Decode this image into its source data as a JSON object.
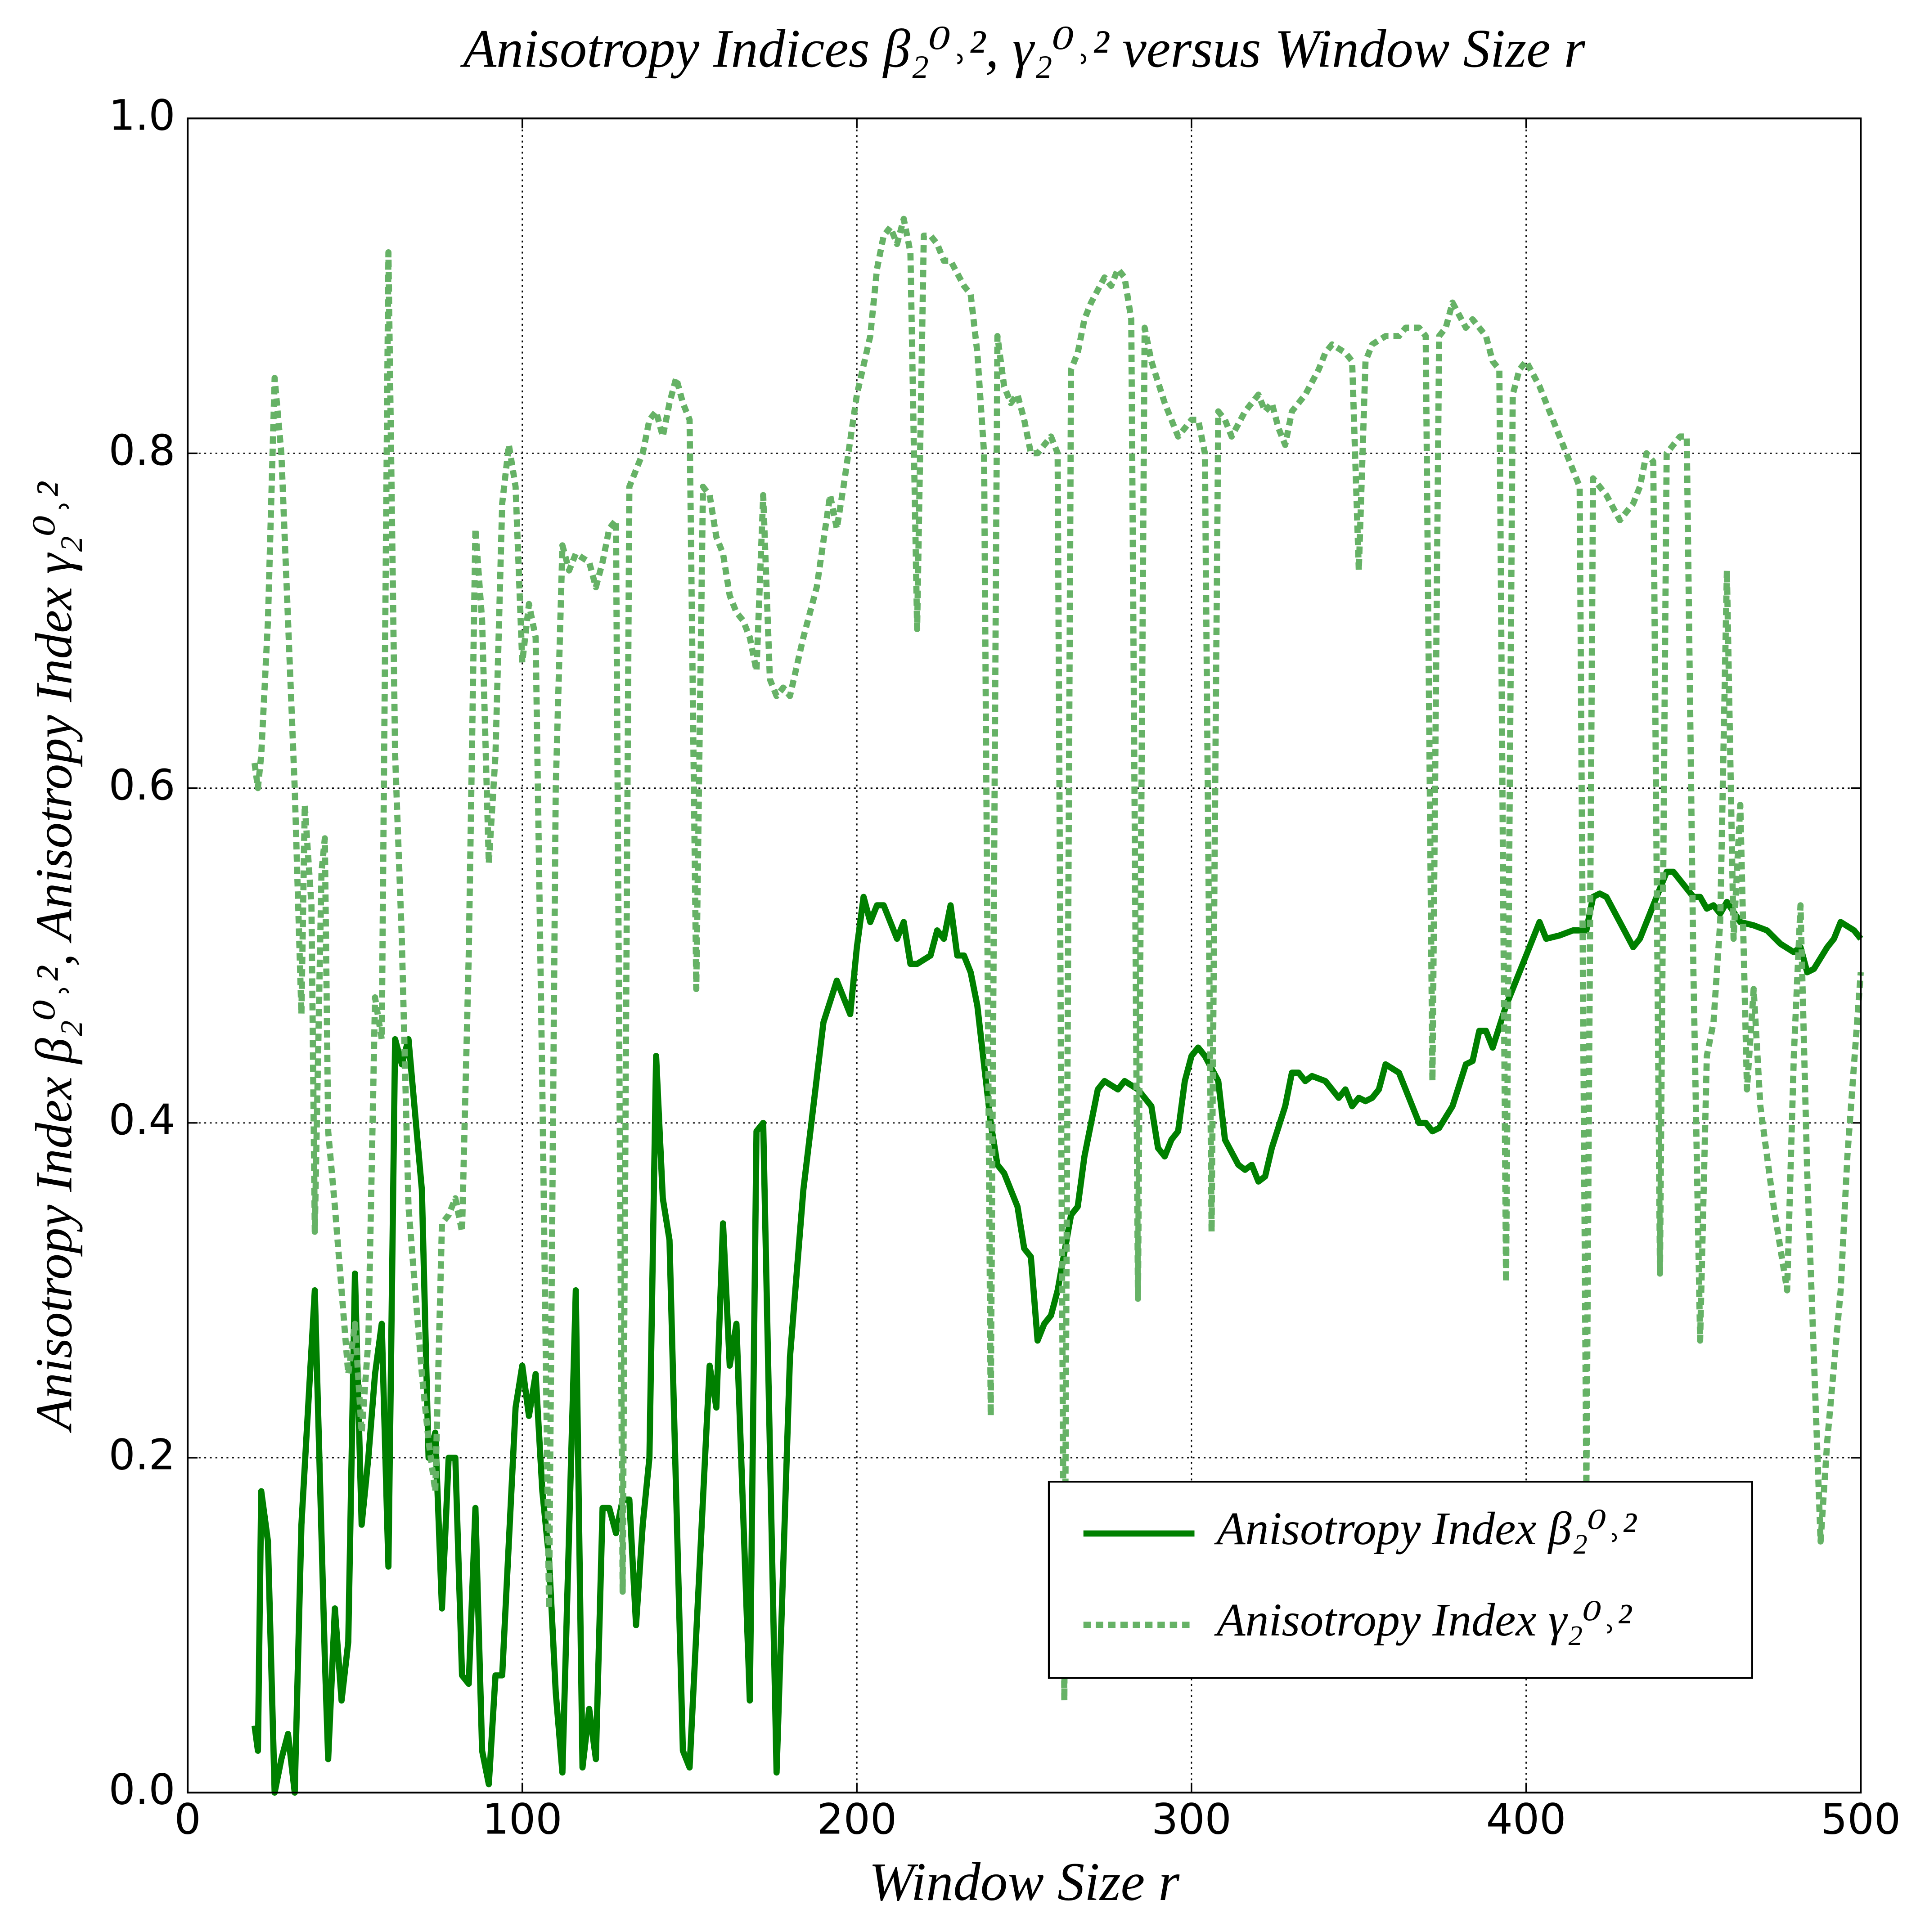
{
  "chart_data": {
    "type": "line",
    "title": "Anisotropy Indices β₂⁰˒², γ₂⁰˒² versus Window Size r",
    "x_label": "Window Size r",
    "y_label": "Anisotropy Index β₂⁰˒²,  Anisotropy Index γ₂⁰˒²",
    "xlim": [
      0,
      500
    ],
    "ylim": [
      0,
      1
    ],
    "xticks": [
      0,
      100,
      200,
      300,
      400,
      500
    ],
    "yticks": [
      {
        "value": 0,
        "label": "0.0"
      },
      0.2,
      0.4,
      0.6,
      0.8,
      {
        "value": 1,
        "label": "1.0"
      }
    ],
    "grid": true,
    "legend": "lower right",
    "series": [
      {
        "name": "Anisotropy Index β₂⁰˒²",
        "color": "#008000",
        "style": "solid",
        "x": [
          20,
          21,
          22,
          24,
          26,
          28,
          30,
          32,
          34,
          38,
          41,
          42,
          44,
          46,
          48,
          50,
          52,
          54,
          56,
          58,
          60,
          62,
          64,
          66,
          70,
          72,
          74,
          76,
          78,
          80,
          82,
          84,
          86,
          88,
          90,
          92,
          94,
          98,
          100,
          102,
          104,
          106,
          108,
          110,
          112,
          116,
          118,
          120,
          122,
          124,
          126,
          128,
          130,
          132,
          134,
          136,
          138,
          140,
          142,
          144,
          148,
          150,
          156,
          158,
          160,
          162,
          164,
          168,
          170,
          172,
          176,
          180,
          184,
          190,
          194,
          198,
          200,
          202,
          204,
          206,
          208,
          212,
          214,
          216,
          218,
          222,
          224,
          226,
          228,
          230,
          232,
          234,
          236,
          240,
          242,
          244,
          248,
          250,
          252,
          254,
          256,
          258,
          260,
          264,
          266,
          268,
          272,
          274,
          278,
          280,
          284,
          288,
          290,
          292,
          294,
          296,
          298,
          300,
          302,
          304,
          308,
          310,
          314,
          316,
          318,
          320,
          322,
          324,
          328,
          330,
          332,
          334,
          336,
          340,
          342,
          344,
          346,
          348,
          350,
          352,
          354,
          356,
          358,
          362,
          366,
          368,
          370,
          372,
          374,
          378,
          382,
          384,
          386,
          388,
          390,
          394,
          398,
          404,
          406,
          410,
          414,
          418,
          420,
          422,
          424,
          428,
          432,
          434,
          436,
          440,
          442,
          444,
          448,
          450,
          452,
          454,
          456,
          458,
          460,
          464,
          468,
          472,
          476,
          480,
          482,
          484,
          486,
          490,
          492,
          494,
          498,
          500
        ],
        "values": [
          0.04,
          0.025,
          0.18,
          0.15,
          0.0,
          0.02,
          0.035,
          0.0,
          0.16,
          0.3,
          0.08,
          0.02,
          0.11,
          0.055,
          0.09,
          0.31,
          0.16,
          0.2,
          0.25,
          0.28,
          0.135,
          0.45,
          0.435,
          0.45,
          0.36,
          0.2,
          0.215,
          0.11,
          0.2,
          0.2,
          0.07,
          0.065,
          0.17,
          0.025,
          0.005,
          0.07,
          0.07,
          0.23,
          0.255,
          0.225,
          0.25,
          0.18,
          0.14,
          0.06,
          0.012,
          0.3,
          0.015,
          0.05,
          0.02,
          0.17,
          0.17,
          0.155,
          0.175,
          0.175,
          0.1,
          0.16,
          0.2,
          0.44,
          0.355,
          0.33,
          0.025,
          0.015,
          0.255,
          0.23,
          0.34,
          0.255,
          0.28,
          0.055,
          0.395,
          0.4,
          0.012,
          0.26,
          0.36,
          0.46,
          0.485,
          0.465,
          0.505,
          0.535,
          0.52,
          0.53,
          0.53,
          0.51,
          0.52,
          0.495,
          0.495,
          0.5,
          0.515,
          0.51,
          0.53,
          0.5,
          0.5,
          0.49,
          0.47,
          0.4,
          0.375,
          0.37,
          0.35,
          0.325,
          0.32,
          0.27,
          0.28,
          0.285,
          0.3,
          0.345,
          0.35,
          0.38,
          0.42,
          0.425,
          0.42,
          0.425,
          0.42,
          0.41,
          0.385,
          0.38,
          0.39,
          0.395,
          0.425,
          0.44,
          0.445,
          0.44,
          0.425,
          0.39,
          0.375,
          0.372,
          0.375,
          0.365,
          0.368,
          0.385,
          0.41,
          0.43,
          0.43,
          0.425,
          0.428,
          0.425,
          0.42,
          0.415,
          0.42,
          0.41,
          0.415,
          0.413,
          0.415,
          0.42,
          0.435,
          0.43,
          0.41,
          0.4,
          0.4,
          0.395,
          0.397,
          0.41,
          0.435,
          0.437,
          0.455,
          0.455,
          0.445,
          0.47,
          0.49,
          0.52,
          0.51,
          0.512,
          0.515,
          0.515,
          0.535,
          0.537,
          0.535,
          0.52,
          0.505,
          0.51,
          0.52,
          0.54,
          0.55,
          0.55,
          0.54,
          0.535,
          0.535,
          0.528,
          0.53,
          0.525,
          0.532,
          0.52,
          0.518,
          0.515,
          0.507,
          0.502,
          0.505,
          0.49,
          0.492,
          0.505,
          0.51,
          0.52,
          0.515,
          0.51
        ]
      },
      {
        "name": "Anisotropy Index γ₂⁰˒²",
        "color": "#66b266",
        "style": "dashed",
        "x": [
          20,
          21,
          22,
          24,
          26,
          28,
          30,
          32,
          34,
          35,
          37,
          38,
          40,
          41,
          42,
          44,
          46,
          48,
          50,
          52,
          54,
          56,
          58,
          60,
          62,
          64,
          66,
          68,
          70,
          72,
          74,
          76,
          78,
          80,
          82,
          84,
          86,
          88,
          90,
          92,
          94,
          96,
          98,
          100,
          102,
          104,
          106,
          108,
          110,
          112,
          114,
          116,
          120,
          122,
          124,
          126,
          128,
          130,
          132,
          136,
          138,
          140,
          142,
          144,
          146,
          148,
          150,
          152,
          154,
          156,
          158,
          160,
          162,
          164,
          166,
          168,
          170,
          172,
          174,
          176,
          178,
          180,
          184,
          188,
          192,
          194,
          196,
          200,
          204,
          206,
          208,
          210,
          212,
          214,
          216,
          218,
          220,
          222,
          224,
          226,
          228,
          232,
          234,
          236,
          238,
          240,
          242,
          244,
          246,
          248,
          250,
          252,
          254,
          256,
          258,
          260,
          262,
          264,
          266,
          268,
          270,
          274,
          276,
          278,
          280,
          282,
          284,
          286,
          288,
          292,
          296,
          300,
          302,
          304,
          306,
          308,
          310,
          312,
          316,
          320,
          322,
          324,
          326,
          328,
          330,
          334,
          338,
          340,
          342,
          346,
          348,
          350,
          352,
          354,
          358,
          362,
          364,
          368,
          370,
          372,
          374,
          376,
          378,
          382,
          384,
          388,
          390,
          392,
          394,
          396,
          398,
          400,
          404,
          406,
          410,
          414,
          416,
          418,
          420,
          424,
          428,
          432,
          434,
          436,
          438,
          440,
          442,
          446,
          448,
          450,
          452,
          454,
          456,
          458,
          460,
          462,
          464,
          466,
          468,
          470,
          474,
          478,
          480,
          482,
          484,
          488,
          490,
          494,
          496,
          500
        ],
        "values": [
          0.615,
          0.6,
          0.62,
          0.7,
          0.845,
          0.8,
          0.7,
          0.6,
          0.465,
          0.59,
          0.53,
          0.335,
          0.55,
          0.57,
          0.395,
          0.35,
          0.3,
          0.25,
          0.28,
          0.215,
          0.27,
          0.475,
          0.45,
          0.92,
          0.62,
          0.51,
          0.35,
          0.3,
          0.25,
          0.21,
          0.18,
          0.34,
          0.345,
          0.355,
          0.335,
          0.5,
          0.755,
          0.7,
          0.555,
          0.62,
          0.77,
          0.805,
          0.78,
          0.675,
          0.71,
          0.69,
          0.42,
          0.11,
          0.6,
          0.745,
          0.73,
          0.74,
          0.735,
          0.72,
          0.735,
          0.755,
          0.76,
          0.12,
          0.78,
          0.8,
          0.82,
          0.825,
          0.81,
          0.83,
          0.845,
          0.83,
          0.82,
          0.48,
          0.78,
          0.775,
          0.75,
          0.74,
          0.715,
          0.705,
          0.7,
          0.69,
          0.67,
          0.775,
          0.665,
          0.655,
          0.66,
          0.655,
          0.69,
          0.72,
          0.775,
          0.755,
          0.78,
          0.835,
          0.87,
          0.91,
          0.93,
          0.935,
          0.925,
          0.94,
          0.92,
          0.695,
          0.93,
          0.93,
          0.925,
          0.915,
          0.915,
          0.9,
          0.895,
          0.86,
          0.8,
          0.225,
          0.87,
          0.84,
          0.83,
          0.835,
          0.82,
          0.8,
          0.8,
          0.805,
          0.81,
          0.8,
          0.055,
          0.85,
          0.86,
          0.88,
          0.89,
          0.905,
          0.9,
          0.91,
          0.905,
          0.88,
          0.295,
          0.875,
          0.855,
          0.83,
          0.81,
          0.82,
          0.82,
          0.8,
          0.335,
          0.825,
          0.82,
          0.81,
          0.825,
          0.835,
          0.825,
          0.83,
          0.815,
          0.805,
          0.825,
          0.835,
          0.85,
          0.86,
          0.865,
          0.86,
          0.855,
          0.73,
          0.855,
          0.865,
          0.87,
          0.87,
          0.875,
          0.875,
          0.87,
          0.425,
          0.87,
          0.875,
          0.89,
          0.875,
          0.88,
          0.87,
          0.855,
          0.85,
          0.305,
          0.835,
          0.85,
          0.855,
          0.84,
          0.83,
          0.81,
          0.79,
          0.78,
          0.18,
          0.785,
          0.775,
          0.76,
          0.77,
          0.78,
          0.8,
          0.795,
          0.31,
          0.8,
          0.81,
          0.81,
          0.49,
          0.27,
          0.44,
          0.46,
          0.52,
          0.73,
          0.51,
          0.59,
          0.42,
          0.48,
          0.41,
          0.35,
          0.3,
          0.44,
          0.53,
          0.37,
          0.15,
          0.21,
          0.3,
          0.38,
          0.49
        ]
      }
    ]
  }
}
